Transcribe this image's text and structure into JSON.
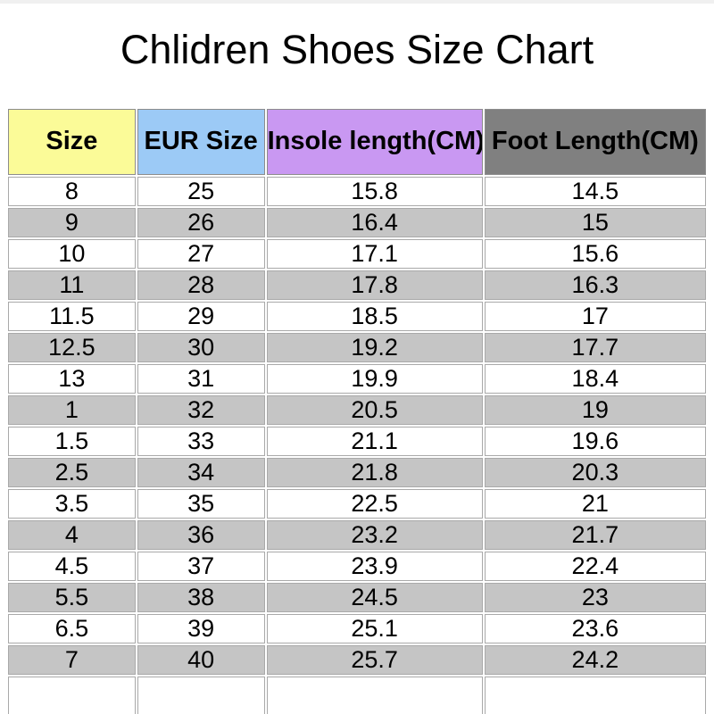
{
  "page": {
    "title": "Chlidren Shoes Size Chart"
  },
  "colors": {
    "header_size_bg": "#fbfb98",
    "header_eur_size_bg": "#9ccaf6",
    "header_insole_bg": "#c998f2",
    "header_foot_bg": "#808080",
    "stripe_row_bg": "#c5c5c5",
    "grid_line": "#a9a9a9",
    "text": "#000000"
  },
  "chart_data": {
    "type": "table",
    "title": "Chlidren Shoes Size Chart",
    "columns": [
      "Size",
      "EUR Size",
      "Insole length(CM)",
      "Foot Length(CM)"
    ],
    "header_colors": [
      "#fbfb98",
      "#9ccaf6",
      "#c998f2",
      "#808080"
    ],
    "rows": [
      [
        "8",
        "25",
        "15.8",
        "14.5"
      ],
      [
        "9",
        "26",
        "16.4",
        "15"
      ],
      [
        "10",
        "27",
        "17.1",
        "15.6"
      ],
      [
        "11",
        "28",
        "17.8",
        "16.3"
      ],
      [
        "11.5",
        "29",
        "18.5",
        "17"
      ],
      [
        "12.5",
        "30",
        "19.2",
        "17.7"
      ],
      [
        "13",
        "31",
        "19.9",
        "18.4"
      ],
      [
        "1",
        "32",
        "20.5",
        "19"
      ],
      [
        "1.5",
        "33",
        "21.1",
        "19.6"
      ],
      [
        "2.5",
        "34",
        "21.8",
        "20.3"
      ],
      [
        "3.5",
        "35",
        "22.5",
        "21"
      ],
      [
        "4",
        "36",
        "23.2",
        "21.7"
      ],
      [
        "4.5",
        "37",
        "23.9",
        "22.4"
      ],
      [
        "5.5",
        "38",
        "24.5",
        "23"
      ],
      [
        "6.5",
        "39",
        "25.1",
        "23.6"
      ],
      [
        "7",
        "40",
        "25.7",
        "24.2"
      ],
      [
        "",
        "",
        "",
        ""
      ]
    ],
    "layout": {
      "striped": true,
      "first_row_background": "white",
      "grid": true
    }
  }
}
